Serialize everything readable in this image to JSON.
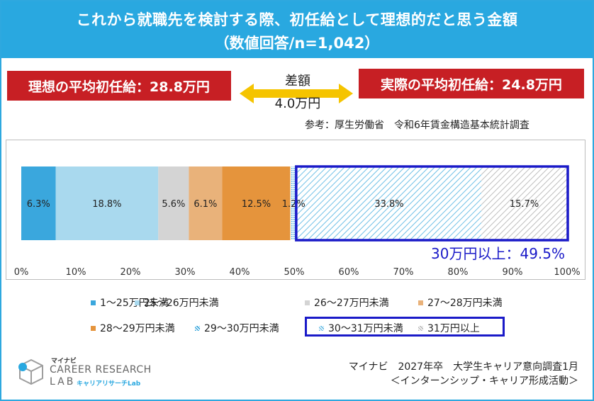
{
  "header": {
    "title": "これから就職先を検討する際、初任給として理想的だと思う金額",
    "subtitle": "（数値回答/n=1,042）"
  },
  "ideal_box": {
    "label": "理想の平均初任給：28.8万円"
  },
  "actual_box": {
    "label": "実際の平均初任給：24.8万円"
  },
  "difference": {
    "label": "差額",
    "value": "4.0万円"
  },
  "reference": "参考：厚生労働省　令和6年賃金構造基本統計調査",
  "highlight_label": "30万円以上：49.5%",
  "source": {
    "line1": "マイナビ　2027年卒　大学生キャリア意向調査1月",
    "line2": "＜インターンシップ・キャリア形成活動＞"
  },
  "logo": {
    "brand_small": "マイナビ",
    "brand_line1": "CAREER RESEARCH",
    "brand_line2": "LAB",
    "brand_sub": "キャリアリサーチLab"
  },
  "colors": {
    "header": "#29a8e0",
    "red_box": "#c71f24",
    "highlight": "#1a1ac8"
  },
  "chart_data": {
    "type": "bar",
    "orientation": "horizontal-stacked",
    "series": [
      {
        "name": "1～25万円未満",
        "value": 6.3,
        "label": "6.3%",
        "color": "#3aa7dd",
        "pattern": "solid"
      },
      {
        "name": "25～26万円未満",
        "value": 18.8,
        "label": "18.8%",
        "color": "#a9d9ee",
        "pattern": "solid"
      },
      {
        "name": "26～27万円未満",
        "value": 5.6,
        "label": "5.6%",
        "color": "#d4d4d4",
        "pattern": "solid"
      },
      {
        "name": "27～28万円未満",
        "value": 6.1,
        "label": "6.1%",
        "color": "#e9b27a",
        "pattern": "solid"
      },
      {
        "name": "28～29万円未満",
        "value": 12.5,
        "label": "12.5%",
        "color": "#e5943c",
        "pattern": "solid"
      },
      {
        "name": "29～30万円未満",
        "value": 1.2,
        "label": "1.2%",
        "color": "#3aa7dd",
        "pattern": "dots"
      },
      {
        "name": "30～31万円未満",
        "value": 33.8,
        "label": "33.8%",
        "color": "#6fc0e6",
        "pattern": "hatch"
      },
      {
        "name": "31万円以上",
        "value": 15.7,
        "label": "15.7%",
        "color": "#bdbdbd",
        "pattern": "hatch"
      }
    ],
    "xlim": [
      0,
      100
    ],
    "xticks": [
      "0%",
      "10%",
      "20%",
      "30%",
      "40%",
      "50%",
      "60%",
      "70%",
      "80%",
      "90%",
      "100%"
    ],
    "legend_position": "bottom"
  }
}
